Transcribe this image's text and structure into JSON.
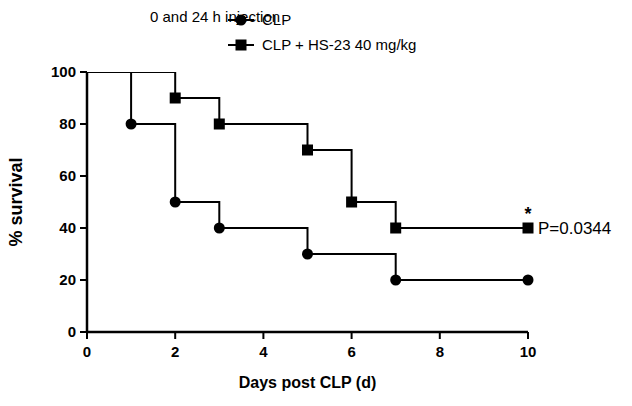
{
  "chart_data": {
    "type": "line",
    "title": "0 and 24 h injection",
    "x_label": "Days post CLP (d)",
    "y_label": "% survival",
    "line_style": "step",
    "legend": "top",
    "xlim": [
      0,
      10
    ],
    "xticks": [
      0,
      2,
      4,
      6,
      8,
      10
    ],
    "ylim": [
      0,
      100
    ],
    "yticks": [
      0,
      20,
      40,
      60,
      80,
      100
    ],
    "series": [
      {
        "name": "CLP",
        "color": "#000000",
        "marker": "circle",
        "x": [
          0,
          1,
          2,
          3,
          5,
          7,
          10
        ],
        "values": [
          100,
          80,
          50,
          40,
          30,
          20,
          20
        ]
      },
      {
        "name": "CLP + HS-23 40 mg/kg",
        "color": "#000000",
        "marker": "square",
        "x": [
          0,
          2,
          3,
          5,
          6,
          7,
          10
        ],
        "values": [
          100,
          90,
          80,
          70,
          50,
          40,
          40
        ]
      }
    ],
    "annotations": [
      {
        "text": "*",
        "x": 10,
        "y": 40
      },
      {
        "text": "P=0.0344",
        "x": 10,
        "y": 40
      }
    ]
  }
}
